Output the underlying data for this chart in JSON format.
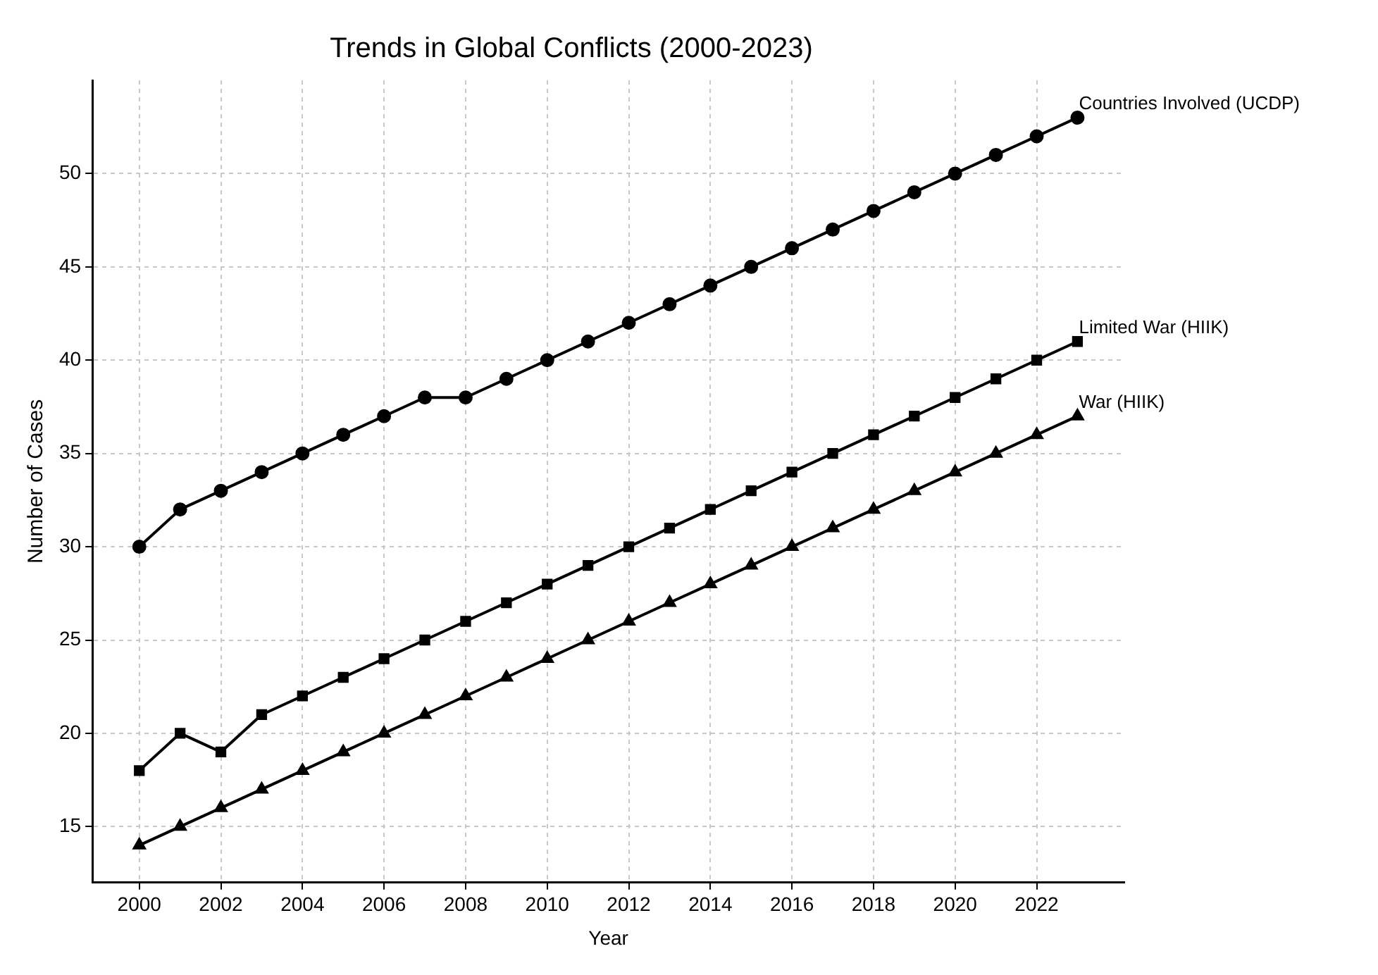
{
  "chart_data": {
    "type": "line",
    "title": "Trends in Global Conflicts (2000-2023)",
    "xlabel": "Year",
    "ylabel": "Number of Cases",
    "x": [
      2000,
      2001,
      2002,
      2003,
      2004,
      2005,
      2006,
      2007,
      2008,
      2009,
      2010,
      2011,
      2012,
      2013,
      2014,
      2015,
      2016,
      2017,
      2018,
      2019,
      2020,
      2021,
      2022,
      2023
    ],
    "series": [
      {
        "name": "Countries Involved (UCDP)",
        "color": "#000000",
        "marker": "circle",
        "values": [
          30,
          32,
          33,
          34,
          35,
          36,
          37,
          38,
          38,
          39,
          40,
          41,
          42,
          43,
          44,
          45,
          46,
          47,
          48,
          49,
          50,
          51,
          52,
          53
        ]
      },
      {
        "name": "Limited War (HIIK)",
        "color": "#000000",
        "marker": "square",
        "values": [
          18,
          20,
          19,
          21,
          22,
          23,
          24,
          25,
          26,
          27,
          28,
          29,
          30,
          31,
          32,
          33,
          34,
          35,
          36,
          37,
          38,
          39,
          40,
          41
        ]
      },
      {
        "name": "War (HIIK)",
        "color": "#000000",
        "marker": "triangle",
        "values": [
          14,
          15,
          16,
          17,
          18,
          19,
          20,
          21,
          22,
          23,
          24,
          25,
          26,
          27,
          28,
          29,
          30,
          31,
          32,
          33,
          34,
          35,
          36,
          37
        ]
      }
    ],
    "xlim": [
      1998.85,
      2024.15
    ],
    "xticks": [
      2000,
      2002,
      2004,
      2006,
      2008,
      2010,
      2012,
      2014,
      2016,
      2018,
      2020,
      2022
    ],
    "ylim": [
      12,
      55
    ],
    "yticks": [
      15,
      20,
      25,
      30,
      35,
      40,
      45,
      50
    ],
    "grid": true,
    "legend": false,
    "line_style": "solid"
  }
}
